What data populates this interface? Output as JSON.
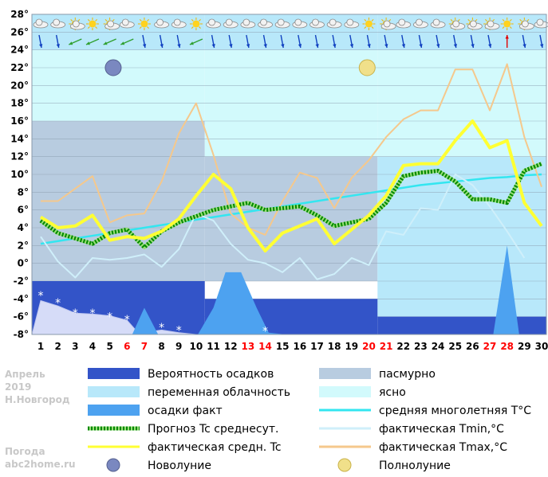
{
  "caption": {
    "month": "Апрель",
    "year": "2019",
    "city": "Н.Новгород",
    "site_label": "Погода",
    "site": "abc2home.ru"
  },
  "chart_data": {
    "type": "line",
    "title": "",
    "xlabel": "",
    "ylabel": "",
    "x": [
      1,
      2,
      3,
      4,
      5,
      6,
      7,
      8,
      9,
      10,
      11,
      12,
      13,
      14,
      15,
      16,
      17,
      18,
      19,
      20,
      21,
      22,
      23,
      24,
      25,
      26,
      27,
      28,
      29,
      30
    ],
    "x_tick_labels": [
      "1",
      "2",
      "3",
      "4",
      "5",
      "6",
      "7",
      "8",
      "9",
      "10",
      "11",
      "12",
      "13",
      "14",
      "15",
      "16",
      "17",
      "18",
      "19",
      "20",
      "21",
      "22",
      "23",
      "24",
      "25",
      "26",
      "27",
      "28",
      "29",
      "30"
    ],
    "weekend_days": [
      6,
      7,
      13,
      14,
      20,
      21,
      27,
      28
    ],
    "weekend_color": "#ff0000",
    "y_ticks": [
      "28°",
      "26°",
      "24°",
      "22°",
      "20°",
      "18°",
      "16°",
      "14°",
      "12°",
      "10°",
      "8°",
      "6°",
      "4°",
      "2°",
      "0°",
      "-2°",
      "-4°",
      "-6°",
      "-8°"
    ],
    "ylim": [
      -8,
      28
    ],
    "grid": true,
    "cloud_bands": [
      {
        "from": 0.5,
        "to": 10.5,
        "top": 28,
        "bottom": 24,
        "kind": "variable"
      },
      {
        "from": 0.5,
        "to": 10.5,
        "top": 24,
        "bottom": 16,
        "kind": "clear"
      },
      {
        "from": 0.5,
        "to": 10.5,
        "top": 16,
        "bottom": -2,
        "kind": "overcast"
      },
      {
        "from": 10.5,
        "to": 20.5,
        "top": 28,
        "bottom": 24,
        "kind": "variable"
      },
      {
        "from": 10.5,
        "to": 20.5,
        "top": 24,
        "bottom": 12,
        "kind": "clear"
      },
      {
        "from": 10.5,
        "to": 20.5,
        "top": 12,
        "bottom": -2,
        "kind": "overcast"
      },
      {
        "from": 20.5,
        "to": 30.5,
        "top": 28,
        "bottom": 24,
        "kind": "variable"
      },
      {
        "from": 20.5,
        "to": 30.5,
        "top": 24,
        "bottom": 12,
        "kind": "clear"
      },
      {
        "from": 20.5,
        "to": 30.5,
        "top": 12,
        "bottom": -6,
        "kind": "variable"
      }
    ],
    "precip_probability": [
      {
        "from": 0.5,
        "to": 10.5,
        "level": -2
      },
      {
        "from": 10.5,
        "to": 20.5,
        "level": -4
      },
      {
        "from": 20.5,
        "to": 30.5,
        "level": -6
      }
    ],
    "snow_area": {
      "x": [
        0.5,
        1,
        2,
        3,
        4,
        5,
        6,
        6.5,
        7,
        8,
        9,
        10
      ],
      "y": [
        -8,
        -4.2,
        -4.8,
        -5.6,
        -5.7,
        -5.9,
        -6.4,
        -7.5,
        -7.8,
        -7.5,
        -7.8,
        -8
      ]
    },
    "snow_marks": [
      {
        "x": 1,
        "y": -3.6
      },
      {
        "x": 2,
        "y": -4.4
      },
      {
        "x": 3,
        "y": -5.6
      },
      {
        "x": 4,
        "y": -5.6
      },
      {
        "x": 5,
        "y": -6.0
      },
      {
        "x": 6,
        "y": -6.3
      },
      {
        "x": 8,
        "y": -7.2
      },
      {
        "x": 9,
        "y": -7.5
      },
      {
        "x": 14,
        "y": -7.6
      }
    ],
    "precip_fact": [
      {
        "x": [
          6.3,
          7,
          7.8
        ],
        "y": [
          -8,
          -5,
          -8
        ]
      },
      {
        "x": [
          10.1,
          11,
          11.7,
          12.6,
          13.5,
          14.2,
          15.2
        ],
        "y": [
          -8,
          -5,
          -1,
          -1,
          -5,
          -7.8,
          -8
        ]
      },
      {
        "x": [
          27.2,
          28,
          28.7
        ],
        "y": [
          -8,
          2,
          -8
        ]
      }
    ],
    "series": [
      {
        "name": "Прогноз Tc среднесут.",
        "color": "#008800",
        "values": [
          4.8,
          3.4,
          2.8,
          2.2,
          3.4,
          3.8,
          1.8,
          3.6,
          4.6,
          5.3,
          6.0,
          6.4,
          6.8,
          6.0,
          6.2,
          6.4,
          5.4,
          4.2,
          4.6,
          5.0,
          6.8,
          9.8,
          10.2,
          10.4,
          9.2,
          7.2,
          7.2,
          6.8,
          10.4,
          11.2
        ]
      },
      {
        "name": "фактическая средн. Tc",
        "color": "#ffff33",
        "values": [
          5.2,
          4.0,
          4.2,
          5.4,
          2.6,
          3.0,
          2.8,
          3.6,
          5.0,
          7.6,
          10.0,
          8.4,
          4.0,
          1.4,
          3.4,
          4.2,
          5.0,
          2.2,
          3.8,
          5.4,
          7.6,
          11.0,
          11.2,
          11.2,
          13.8,
          16.0,
          13.0,
          13.8,
          6.8,
          4.2
        ]
      },
      {
        "name": "средняя многолетняя T°C",
        "color": "#33e6f0",
        "values": [
          2.2,
          2.5,
          2.8,
          3.1,
          3.4,
          3.7,
          4.0,
          4.3,
          4.6,
          4.9,
          5.2,
          5.5,
          5.8,
          6.1,
          6.4,
          6.7,
          7.0,
          7.3,
          7.6,
          7.9,
          8.2,
          8.5,
          8.8,
          9.0,
          9.2,
          9.4,
          9.6,
          9.7,
          9.9,
          10.0
        ]
      },
      {
        "name": "фактическая Tmin,°C",
        "color": "#cfeffa",
        "values": [
          3.0,
          0.2,
          -1.6,
          0.6,
          0.4,
          0.6,
          1.0,
          -0.4,
          1.6,
          5.6,
          4.8,
          2.2,
          0.4,
          0.0,
          -1.0,
          0.6,
          -1.8,
          -1.2,
          0.6,
          -0.2,
          3.6,
          3.2,
          6.2,
          6.0,
          10.0,
          8.8,
          6.4,
          3.6,
          0.6,
          null
        ]
      },
      {
        "name": "фактическая Tmax,°C",
        "color": "#f5c88c",
        "values": [
          7.0,
          7.0,
          8.4,
          9.8,
          4.6,
          5.4,
          5.6,
          9.2,
          14.6,
          18.0,
          12.2,
          5.6,
          4.0,
          3.2,
          7.0,
          10.2,
          9.6,
          6.2,
          9.6,
          11.6,
          14.2,
          16.2,
          17.2,
          17.2,
          21.8,
          21.8,
          17.2,
          22.4,
          14.2,
          8.6
        ]
      }
    ],
    "moon_phases": [
      {
        "name": "Новолуние",
        "x": 5.2,
        "y": 22
      },
      {
        "name": "Полнолуние",
        "x": 19.9,
        "y": 22
      }
    ],
    "sky_icons": [
      "cloud",
      "cloud",
      "sun-cloud",
      "sun",
      "sun-cloud",
      "cloud",
      "sun",
      "cloud",
      "cloud",
      "sun",
      "cloud",
      "cloud",
      "cloud",
      "cloud",
      "cloud",
      "cloud",
      "cloud",
      "cloud",
      "cloud",
      "sun",
      "sun-cloud",
      "cloud",
      "cloud",
      "cloud",
      "sun-cloud",
      "sun-cloud",
      "sun-cloud",
      "sun",
      "sun-cloud",
      "cloud"
    ],
    "wind_icons": [
      "down",
      "down",
      "left",
      "left",
      "left",
      "left",
      "down",
      "down",
      "down",
      "left",
      "down",
      "down",
      "down",
      "down",
      "down",
      "down",
      "down",
      "down",
      "down",
      "down",
      "down",
      "down",
      "down",
      "down",
      "down",
      "down",
      "down",
      "up",
      "down",
      "down"
    ],
    "legend": [
      {
        "label": "Вероятность осадков",
        "symbol": "box",
        "color": "#3354c8"
      },
      {
        "label": "пасмурно",
        "symbol": "box",
        "color": "#b8cce0"
      },
      {
        "label": "переменная облачность",
        "symbol": "box",
        "color": "#b8e8fa"
      },
      {
        "label": "ясно",
        "symbol": "box",
        "color": "#d2fafc"
      },
      {
        "label": "осадки факт",
        "symbol": "box",
        "color": "#4da2f0"
      },
      {
        "label": "средняя многолетняя T°C",
        "symbol": "line",
        "color": "#33e6f0"
      },
      {
        "label": "Прогноз Tc среднесут.",
        "symbol": "dotted",
        "color": "#008800"
      },
      {
        "label": "фактическая Tmin,°C",
        "symbol": "line",
        "color": "#cfeffa"
      },
      {
        "label": "фактическая средн. Tc",
        "symbol": "line",
        "color": "#ffff33"
      },
      {
        "label": "фактическая Tmax,°C",
        "symbol": "line",
        "color": "#f5c88c"
      },
      {
        "label": "Новолуние",
        "symbol": "new-moon"
      },
      {
        "label": "Полнолуние",
        "symbol": "full-moon"
      }
    ]
  }
}
